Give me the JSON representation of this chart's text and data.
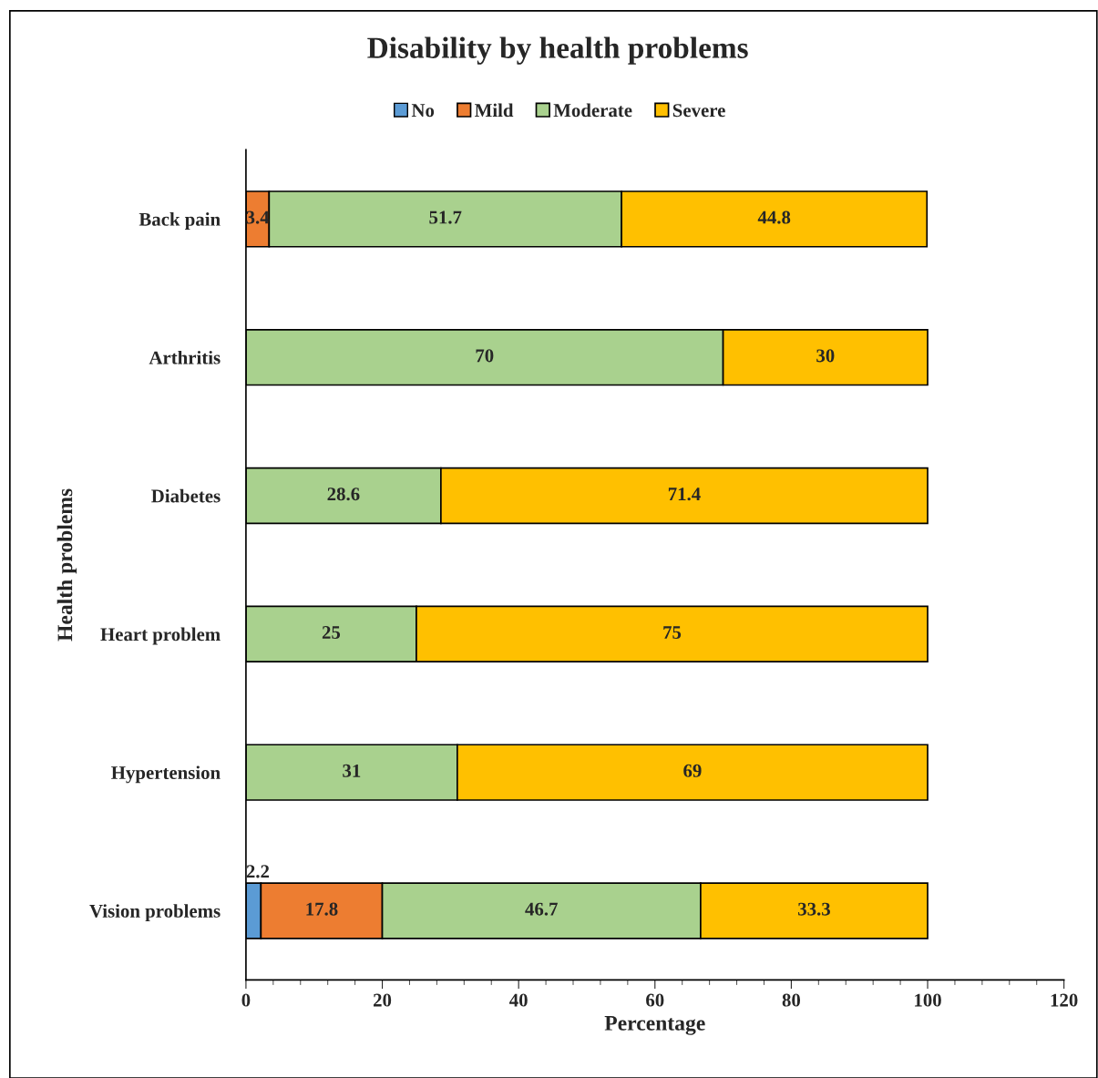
{
  "chart_data": {
    "type": "bar",
    "orientation": "horizontal",
    "stacked": true,
    "title": "Disability by health problems",
    "xlabel": "Percentage",
    "ylabel": "Health problems",
    "categories": [
      "Back pain",
      "Arthritis",
      "Diabetes",
      "Heart problem",
      "Hypertension",
      "Vision problems"
    ],
    "series": [
      {
        "name": "No",
        "color": "#5b9bd5",
        "values": [
          null,
          null,
          null,
          null,
          null,
          2.2
        ]
      },
      {
        "name": "Mild",
        "color": "#ed7d31",
        "values": [
          3.4,
          null,
          null,
          null,
          null,
          17.8
        ]
      },
      {
        "name": "Moderate",
        "color": "#a9d18e",
        "values": [
          51.7,
          70,
          28.6,
          25,
          31,
          46.7
        ]
      },
      {
        "name": "Severe",
        "color": "#ffc000",
        "values": [
          44.8,
          30,
          71.4,
          75,
          69,
          33.3
        ]
      }
    ],
    "xlim": [
      0,
      120
    ],
    "xticks": [
      0,
      20,
      40,
      60,
      80,
      100,
      120
    ],
    "data_labels": true,
    "legend": "top",
    "grid": false
  }
}
